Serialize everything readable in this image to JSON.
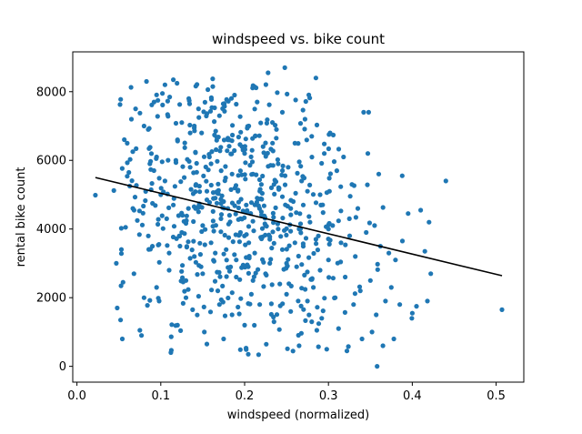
{
  "chart_data": {
    "type": "scatter",
    "title": "windspeed vs. bike count",
    "xlabel": "windspeed (normalized)",
    "ylabel": "rental bike count",
    "xlim": [
      -0.005,
      0.533
    ],
    "ylim": [
      -460,
      9160
    ],
    "xticks": [
      0.0,
      0.1,
      0.2,
      0.3,
      0.4,
      0.5
    ],
    "xtick_labels": [
      "0.0",
      "0.1",
      "0.2",
      "0.3",
      "0.4",
      "0.5"
    ],
    "yticks": [
      0,
      2000,
      4000,
      6000,
      8000
    ],
    "ytick_labels": [
      "0",
      "2000",
      "4000",
      "6000",
      "8000"
    ],
    "grid": false,
    "legend": "none",
    "colors": {
      "points": "#1f77b4",
      "fit_line": "#000000"
    },
    "point_count_estimate": 730,
    "fit_line": {
      "x": [
        0.022,
        0.507
      ],
      "y": [
        5500,
        2640
      ]
    },
    "series": [
      {
        "points": [
          [
            0.022,
            4985
          ],
          [
            0.044,
            5120
          ],
          [
            0.047,
            3000
          ],
          [
            0.048,
            1700
          ],
          [
            0.052,
            1350
          ],
          [
            0.055,
            2450
          ],
          [
            0.058,
            4050
          ],
          [
            0.06,
            6500
          ],
          [
            0.063,
            5250
          ],
          [
            0.065,
            7200
          ],
          [
            0.068,
            2700
          ],
          [
            0.07,
            7500
          ],
          [
            0.072,
            4250
          ],
          [
            0.075,
            1050
          ],
          [
            0.077,
            900
          ],
          [
            0.08,
            2000
          ],
          [
            0.083,
            8300
          ],
          [
            0.085,
            6900
          ],
          [
            0.087,
            5900
          ],
          [
            0.09,
            3500
          ],
          [
            0.092,
            7700
          ],
          [
            0.095,
            2300
          ],
          [
            0.098,
            1900
          ],
          [
            0.1,
            5000
          ],
          [
            0.102,
            7950
          ],
          [
            0.105,
            8200
          ],
          [
            0.107,
            4300
          ],
          [
            0.11,
            2800
          ],
          [
            0.112,
            400
          ],
          [
            0.115,
            8350
          ],
          [
            0.118,
            6000
          ],
          [
            0.12,
            1200
          ],
          [
            0.122,
            3800
          ],
          [
            0.125,
            7100
          ],
          [
            0.128,
            5500
          ],
          [
            0.13,
            2500
          ],
          [
            0.133,
            4600
          ],
          [
            0.135,
            6800
          ],
          [
            0.138,
            1650
          ],
          [
            0.14,
            3200
          ],
          [
            0.142,
            5300
          ],
          [
            0.145,
            7500
          ],
          [
            0.148,
            2900
          ],
          [
            0.15,
            4100
          ],
          [
            0.152,
            1000
          ],
          [
            0.155,
            650
          ],
          [
            0.158,
            6100
          ],
          [
            0.16,
            3600
          ],
          [
            0.162,
            8150
          ],
          [
            0.165,
            4900
          ],
          [
            0.168,
            2200
          ],
          [
            0.17,
            7300
          ],
          [
            0.172,
            5700
          ],
          [
            0.175,
            800
          ],
          [
            0.178,
            3400
          ],
          [
            0.18,
            6600
          ],
          [
            0.182,
            4400
          ],
          [
            0.185,
            1500
          ],
          [
            0.188,
            7900
          ],
          [
            0.19,
            2600
          ],
          [
            0.192,
            5100
          ],
          [
            0.195,
            3900
          ],
          [
            0.198,
            6300
          ],
          [
            0.2,
            1200
          ],
          [
            0.202,
            4700
          ],
          [
            0.205,
            7000
          ],
          [
            0.208,
            2100
          ],
          [
            0.21,
            5600
          ],
          [
            0.212,
            3300
          ],
          [
            0.215,
            7700
          ],
          [
            0.218,
            1800
          ],
          [
            0.22,
            4500
          ],
          [
            0.222,
            6400
          ],
          [
            0.225,
            2700
          ],
          [
            0.228,
            8550
          ],
          [
            0.23,
            3700
          ],
          [
            0.232,
            5200
          ],
          [
            0.235,
            1300
          ],
          [
            0.238,
            6900
          ],
          [
            0.24,
            4000
          ],
          [
            0.242,
            2400
          ],
          [
            0.245,
            7400
          ],
          [
            0.248,
            8700
          ],
          [
            0.25,
            3000
          ],
          [
            0.252,
            5800
          ],
          [
            0.255,
            1600
          ],
          [
            0.258,
            4800
          ],
          [
            0.26,
            6500
          ],
          [
            0.262,
            2900
          ],
          [
            0.265,
            600
          ],
          [
            0.268,
            5400
          ],
          [
            0.27,
            3500
          ],
          [
            0.272,
            7200
          ],
          [
            0.275,
            1900
          ],
          [
            0.278,
            4200
          ],
          [
            0.28,
            6700
          ],
          [
            0.282,
            2300
          ],
          [
            0.285,
            8400
          ],
          [
            0.288,
            3800
          ],
          [
            0.29,
            5000
          ],
          [
            0.292,
            1400
          ],
          [
            0.295,
            6200
          ],
          [
            0.298,
            500
          ],
          [
            0.3,
            3100
          ],
          [
            0.302,
            6800
          ],
          [
            0.305,
            4100
          ],
          [
            0.308,
            2000
          ],
          [
            0.31,
            5700
          ],
          [
            0.312,
            1100
          ],
          [
            0.315,
            3600
          ],
          [
            0.318,
            6100
          ],
          [
            0.32,
            2600
          ],
          [
            0.322,
            450
          ],
          [
            0.325,
            4300
          ],
          [
            0.328,
            5300
          ],
          [
            0.33,
            1800
          ],
          [
            0.332,
            3200
          ],
          [
            0.335,
            4600
          ],
          [
            0.338,
            2200
          ],
          [
            0.34,
            800
          ],
          [
            0.342,
            7400
          ],
          [
            0.345,
            3900
          ],
          [
            0.347,
            6200
          ],
          [
            0.348,
            7400
          ],
          [
            0.35,
            2500
          ],
          [
            0.352,
            1000
          ],
          [
            0.355,
            4100
          ],
          [
            0.357,
            1500
          ],
          [
            0.358,
            0
          ],
          [
            0.36,
            5600
          ],
          [
            0.362,
            3500
          ],
          [
            0.365,
            600
          ],
          [
            0.368,
            1900
          ],
          [
            0.372,
            3300
          ],
          [
            0.375,
            2300
          ],
          [
            0.378,
            800
          ],
          [
            0.38,
            3100
          ],
          [
            0.385,
            1800
          ],
          [
            0.388,
            5550
          ],
          [
            0.395,
            4450
          ],
          [
            0.4,
            1550
          ],
          [
            0.405,
            1750
          ],
          [
            0.41,
            4550
          ],
          [
            0.415,
            3350
          ],
          [
            0.418,
            1900
          ],
          [
            0.42,
            4200
          ],
          [
            0.422,
            2700
          ],
          [
            0.44,
            5400
          ],
          [
            0.507,
            1650
          ],
          [
            0.095,
            6100
          ],
          [
            0.105,
            5400
          ],
          [
            0.115,
            4700
          ],
          [
            0.125,
            3900
          ],
          [
            0.135,
            5800
          ],
          [
            0.145,
            4500
          ],
          [
            0.155,
            5100
          ],
          [
            0.165,
            3300
          ],
          [
            0.175,
            4800
          ],
          [
            0.185,
            5600
          ],
          [
            0.195,
            4300
          ],
          [
            0.205,
            3600
          ],
          [
            0.215,
            4900
          ],
          [
            0.225,
            4100
          ],
          [
            0.235,
            5300
          ],
          [
            0.245,
            3400
          ],
          [
            0.255,
            4600
          ],
          [
            0.265,
            4000
          ],
          [
            0.275,
            5100
          ],
          [
            0.285,
            3700
          ],
          [
            0.11,
            3300
          ],
          [
            0.12,
            6600
          ],
          [
            0.13,
            2000
          ],
          [
            0.14,
            7000
          ],
          [
            0.15,
            2700
          ],
          [
            0.16,
            5900
          ],
          [
            0.17,
            1800
          ],
          [
            0.18,
            4600
          ],
          [
            0.19,
            3100
          ],
          [
            0.2,
            6200
          ],
          [
            0.21,
            2500
          ],
          [
            0.22,
            5300
          ],
          [
            0.23,
            3000
          ],
          [
            0.24,
            5900
          ],
          [
            0.25,
            2100
          ],
          [
            0.26,
            3600
          ],
          [
            0.27,
            4700
          ],
          [
            0.28,
            1300
          ],
          [
            0.29,
            2800
          ],
          [
            0.3,
            4000
          ]
        ]
      }
    ]
  }
}
